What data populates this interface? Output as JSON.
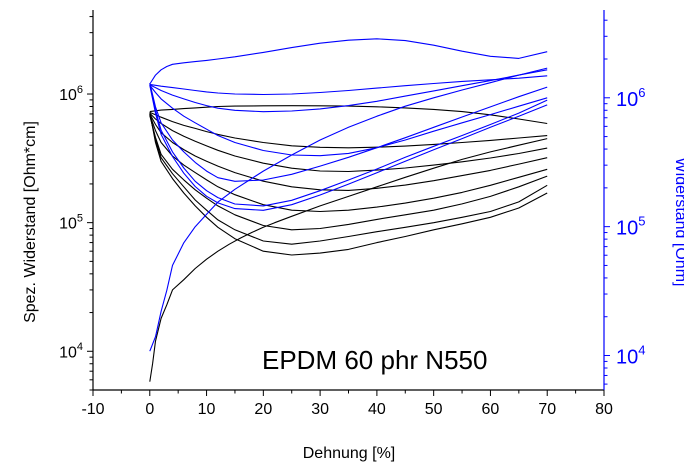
{
  "chart_data": {
    "type": "line",
    "annotation": "EPDM 60 phr N550",
    "xlabel": "Dehnung [%]",
    "ylabel_left": "Spez. Widerstand [Ohm*cm]",
    "ylabel_right": "Widerstand [Ohm]",
    "xlim": [
      -10,
      80
    ],
    "x_ticks": [
      -10,
      0,
      10,
      20,
      30,
      40,
      50,
      60,
      70,
      80
    ],
    "x_tick_labels": [
      "-10",
      "0",
      "10",
      "20",
      "30",
      "40",
      "50",
      "60",
      "70",
      "80"
    ],
    "y_left_scale": "log",
    "y_left_lim": [
      5000,
      4500000
    ],
    "y_left_ticks": [
      10000,
      100000,
      1000000
    ],
    "y_left_tick_labels": [
      {
        "base": "10",
        "exp": "4"
      },
      {
        "base": "10",
        "exp": "5"
      },
      {
        "base": "10",
        "exp": "6"
      }
    ],
    "y_right_scale": "log",
    "y_right_lim": [
      5400,
      4800000
    ],
    "y_right_ticks": [
      10000,
      100000,
      1000000
    ],
    "y_right_tick_labels": [
      {
        "base": "10",
        "exp": "4"
      },
      {
        "base": "10",
        "exp": "5"
      },
      {
        "base": "10",
        "exp": "6"
      }
    ],
    "colors": {
      "left_axis": "#000000",
      "right_axis": "#0000ff",
      "left_series": "#000000",
      "right_series": "#0000ff"
    },
    "series_left": [
      {
        "x": [
          0,
          0.5,
          1,
          2,
          3,
          4,
          6,
          8,
          10,
          12,
          14,
          16,
          18,
          20,
          22,
          25,
          30,
          35,
          40,
          45,
          50,
          55,
          60,
          65,
          70
        ],
        "y": [
          5800,
          8000,
          12000,
          18000,
          23000,
          30000,
          36000,
          44000,
          52000,
          60000,
          68000,
          76000,
          84000,
          92000,
          100000,
          112000,
          135000,
          160000,
          190000,
          225000,
          265000,
          310000,
          355000,
          400000,
          450000
        ]
      },
      {
        "x": [
          0,
          1,
          2,
          4,
          6,
          8,
          10,
          12,
          15,
          20,
          25,
          30,
          35,
          40,
          45,
          50,
          55,
          60,
          65,
          70
        ],
        "y": [
          720000,
          420000,
          300000,
          220000,
          170000,
          135000,
          110000,
          92000,
          75000,
          60000,
          56000,
          58000,
          62000,
          70000,
          78000,
          88000,
          98000,
          110000,
          130000,
          170000
        ]
      },
      {
        "x": [
          0,
          1,
          2,
          4,
          6,
          8,
          10,
          12,
          15,
          20,
          25,
          30,
          35,
          40,
          45,
          50,
          55,
          60,
          65,
          70
        ],
        "y": [
          700000,
          440000,
          320000,
          240000,
          190000,
          150000,
          125000,
          105000,
          88000,
          72000,
          68000,
          72000,
          78000,
          85000,
          92000,
          100000,
          110000,
          122000,
          145000,
          195000
        ]
      },
      {
        "x": [
          0,
          1,
          2,
          4,
          6,
          8,
          10,
          12,
          15,
          20,
          25,
          30,
          35,
          40,
          45,
          50,
          55,
          60,
          65,
          70
        ],
        "y": [
          680000,
          460000,
          340000,
          260000,
          215000,
          180000,
          155000,
          135000,
          115000,
          95000,
          88000,
          90000,
          97000,
          106000,
          115000,
          125000,
          140000,
          160000,
          190000,
          230000
        ]
      },
      {
        "x": [
          0,
          1,
          2,
          4,
          6,
          8,
          10,
          12,
          15,
          20,
          25,
          30,
          35,
          40,
          45,
          50,
          55,
          60,
          65,
          70
        ],
        "y": [
          690000,
          520000,
          420000,
          330000,
          280000,
          245000,
          215000,
          190000,
          165000,
          138000,
          125000,
          122000,
          125000,
          132000,
          142000,
          155000,
          172000,
          195000,
          225000,
          260000
        ]
      },
      {
        "x": [
          0,
          1,
          2,
          4,
          6,
          8,
          10,
          12,
          15,
          20,
          25,
          30,
          35,
          40,
          45,
          50,
          55,
          60,
          65,
          70
        ],
        "y": [
          700000,
          580000,
          500000,
          420000,
          370000,
          330000,
          300000,
          275000,
          245000,
          210000,
          190000,
          180000,
          178000,
          185000,
          196000,
          212000,
          232000,
          255000,
          285000,
          320000
        ]
      },
      {
        "x": [
          0,
          1,
          2,
          4,
          6,
          8,
          10,
          12,
          15,
          20,
          25,
          30,
          35,
          40,
          45,
          50,
          55,
          60,
          65,
          70
        ],
        "y": [
          710000,
          640000,
          590000,
          520000,
          470000,
          430000,
          395000,
          365000,
          330000,
          290000,
          265000,
          252000,
          250000,
          256000,
          266000,
          280000,
          297000,
          318000,
          345000,
          380000
        ]
      },
      {
        "x": [
          0,
          1,
          2,
          4,
          6,
          8,
          10,
          12,
          15,
          20,
          25,
          30,
          35,
          40,
          45,
          50,
          55,
          60,
          65,
          70
        ],
        "y": [
          720000,
          690000,
          660000,
          610000,
          570000,
          540000,
          510000,
          485000,
          455000,
          420000,
          396000,
          385000,
          382000,
          386000,
          394000,
          406000,
          420000,
          436000,
          455000,
          475000
        ]
      },
      {
        "x": [
          0,
          1,
          2,
          4,
          6,
          8,
          10,
          12,
          15,
          20,
          25,
          30,
          35,
          40,
          45,
          50,
          55,
          60,
          65,
          70
        ],
        "y": [
          730000,
          740000,
          750000,
          760000,
          770000,
          780000,
          790000,
          800000,
          805000,
          810000,
          812000,
          810000,
          805000,
          795000,
          780000,
          760000,
          730000,
          690000,
          640000,
          590000
        ]
      }
    ],
    "series_right": [
      {
        "x": [
          0,
          1,
          2,
          3,
          4,
          6,
          8,
          10,
          12,
          15,
          20,
          25,
          30,
          35,
          40,
          45,
          50,
          55,
          60,
          65,
          70
        ],
        "y": [
          10800,
          14000,
          22000,
          32000,
          50000,
          75000,
          100000,
          125000,
          155000,
          195000,
          270000,
          360000,
          470000,
          590000,
          720000,
          860000,
          1000000,
          1150000,
          1310000,
          1500000,
          1700000
        ]
      },
      {
        "x": [
          0,
          1,
          2,
          4,
          6,
          8,
          10,
          12,
          15,
          20,
          25,
          30,
          35,
          40,
          45,
          50,
          55,
          60,
          65,
          70
        ],
        "y": [
          1300000,
          850000,
          640000,
          470000,
          380000,
          315000,
          270000,
          240000,
          225000,
          230000,
          255000,
          295000,
          345000,
          410000,
          490000,
          590000,
          710000,
          850000,
          1020000,
          1210000
        ]
      },
      {
        "x": [
          0,
          1,
          2,
          4,
          6,
          8,
          10,
          12,
          15,
          20,
          25,
          30,
          35,
          40,
          45,
          50,
          55,
          60,
          65,
          70
        ],
        "y": [
          1270000,
          800000,
          560000,
          380000,
          285000,
          225000,
          190000,
          168000,
          150000,
          145000,
          160000,
          190000,
          230000,
          280000,
          345000,
          420000,
          510000,
          620000,
          760000,
          960000
        ]
      },
      {
        "x": [
          0,
          1,
          2,
          4,
          6,
          8,
          10,
          12,
          15,
          20,
          25,
          30,
          35,
          40,
          45,
          50,
          55,
          60,
          65,
          70
        ],
        "y": [
          1250000,
          760000,
          520000,
          350000,
          260000,
          205000,
          172000,
          153000,
          138000,
          134000,
          148000,
          176000,
          214000,
          262000,
          322000,
          395000,
          482000,
          590000,
          720000,
          880000
        ]
      },
      {
        "x": [
          0,
          1,
          2,
          4,
          6,
          8,
          10,
          12,
          15,
          20,
          25,
          30,
          35,
          40,
          45,
          50,
          55,
          60,
          65,
          70
        ],
        "y": [
          1250000,
          1100000,
          980000,
          830000,
          720000,
          640000,
          570000,
          510000,
          450000,
          390000,
          360000,
          355000,
          370000,
          410000,
          470000,
          550000,
          640000,
          740000,
          860000,
          1000000
        ]
      },
      {
        "x": [
          0,
          1,
          2,
          4,
          6,
          8,
          10,
          12,
          15,
          20,
          25,
          30,
          35,
          40,
          45,
          50,
          55,
          60,
          65,
          70
        ],
        "y": [
          1260000,
          1200000,
          1140000,
          1050000,
          980000,
          920000,
          870000,
          830000,
          800000,
          780000,
          790000,
          820000,
          870000,
          940000,
          1030000,
          1130000,
          1240000,
          1360000,
          1500000,
          1650000
        ]
      },
      {
        "x": [
          0,
          1,
          2,
          4,
          6,
          8,
          10,
          12,
          15,
          20,
          25,
          30,
          35,
          40,
          45,
          50,
          55,
          60,
          65,
          70
        ],
        "y": [
          1270000,
          1250000,
          1230000,
          1200000,
          1170000,
          1140000,
          1110000,
          1090000,
          1070000,
          1060000,
          1070000,
          1100000,
          1140000,
          1190000,
          1240000,
          1290000,
          1340000,
          1380000,
          1420000,
          1480000
        ]
      },
      {
        "x": [
          0,
          1,
          2,
          3,
          4,
          6,
          8,
          10,
          12,
          15,
          20,
          25,
          30,
          35,
          40,
          45,
          50,
          55,
          60,
          65,
          70
        ],
        "y": [
          1280000,
          1500000,
          1650000,
          1750000,
          1820000,
          1870000,
          1910000,
          1950000,
          2000000,
          2080000,
          2250000,
          2450000,
          2650000,
          2800000,
          2870000,
          2780000,
          2560000,
          2300000,
          2100000,
          2020000,
          2280000
        ]
      }
    ]
  }
}
